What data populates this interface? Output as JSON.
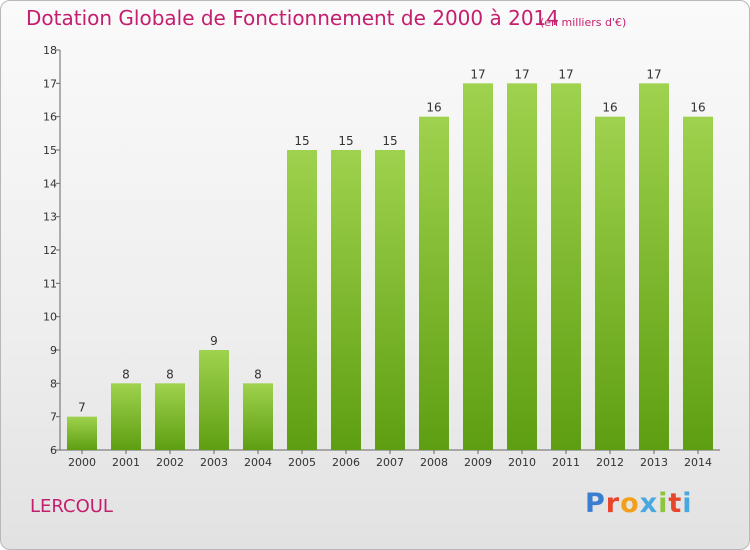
{
  "header": {
    "title": "Dotation Globale de Fonctionnement de 2000 à 2014",
    "unit": "(en milliers d'€)"
  },
  "footer": {
    "commune": "LERCOUL",
    "brand": "Proxiti"
  },
  "colors": {
    "title": "#c41e6e",
    "bar_light": "#9fd24e",
    "bar_dark": "#5e9e12",
    "axis": "#666666"
  },
  "chart_data": {
    "type": "bar",
    "categories": [
      "2000",
      "2001",
      "2002",
      "2003",
      "2004",
      "2005",
      "2006",
      "2007",
      "2008",
      "2009",
      "2010",
      "2011",
      "2012",
      "2013",
      "2014"
    ],
    "values": [
      7,
      8,
      8,
      9,
      8,
      15,
      15,
      15,
      16,
      17,
      17,
      17,
      16,
      17,
      16
    ],
    "title": "Dotation Globale de Fonctionnement de 2000 à 2014",
    "subtitle": "(en milliers d'€)",
    "xlabel": "",
    "ylabel": "",
    "ylim": [
      6,
      18
    ],
    "yticks": [
      6,
      7,
      8,
      9,
      10,
      11,
      12,
      13,
      14,
      15,
      16,
      17,
      18
    ],
    "grid": false,
    "legend": "none"
  }
}
